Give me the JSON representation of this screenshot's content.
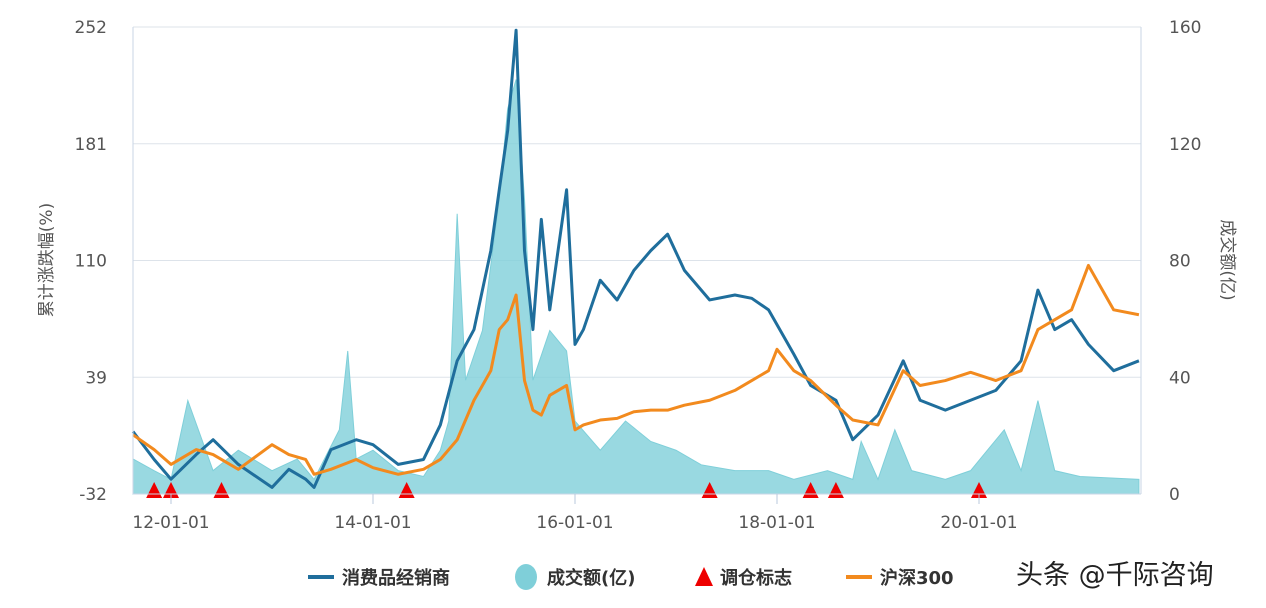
{
  "chart_data": {
    "type": "line",
    "title": "",
    "ylabel_left": "累计涨跌幅(%)",
    "ylabel_right": "成交额(亿)",
    "yticks_left": [
      "-32",
      "39",
      "110",
      "181",
      "252"
    ],
    "ylim_left": [
      -32,
      252
    ],
    "yticks_right": [
      "0",
      "40",
      "80",
      "120",
      "160"
    ],
    "ylim_right": [
      0,
      160
    ],
    "xticks": [
      {
        "date": "2012-01",
        "label": "12-01-01"
      },
      {
        "date": "2014-01",
        "label": "14-01-01"
      },
      {
        "date": "2016-01",
        "label": "16-01-01"
      },
      {
        "date": "2018-01",
        "label": "18-01-01"
      },
      {
        "date": "2020-01",
        "label": "20-01-01"
      }
    ],
    "xlim": [
      "2011-08",
      "2021-08"
    ],
    "grid": "horizontal",
    "legend_position": "bottom",
    "series": [
      {
        "name": "消费品经销商",
        "type": "line",
        "axis": "left",
        "color": "#1f6e9c",
        "points": [
          [
            "2011-08",
            6
          ],
          [
            "2011-11",
            -11
          ],
          [
            "2012-01",
            -23
          ],
          [
            "2012-04",
            -8
          ],
          [
            "2012-06",
            1
          ],
          [
            "2012-09",
            -14
          ],
          [
            "2013-01",
            -28
          ],
          [
            "2013-03",
            -17
          ],
          [
            "2013-05",
            -23
          ],
          [
            "2013-06",
            -28
          ],
          [
            "2013-08",
            -5
          ],
          [
            "2013-11",
            1
          ],
          [
            "2014-01",
            -2
          ],
          [
            "2014-04",
            -14
          ],
          [
            "2014-07",
            -11
          ],
          [
            "2014-09",
            10
          ],
          [
            "2014-11",
            49
          ],
          [
            "2015-01",
            68
          ],
          [
            "2015-03",
            116
          ],
          [
            "2015-04",
            153
          ],
          [
            "2015-05",
            189
          ],
          [
            "2015-06",
            250
          ],
          [
            "2015-07",
            116
          ],
          [
            "2015-08",
            68
          ],
          [
            "2015-09",
            135
          ],
          [
            "2015-10",
            80
          ],
          [
            "2015-12",
            153
          ],
          [
            "2016-01",
            59
          ],
          [
            "2016-02",
            68
          ],
          [
            "2016-04",
            98
          ],
          [
            "2016-06",
            86
          ],
          [
            "2016-08",
            104
          ],
          [
            "2016-10",
            116
          ],
          [
            "2016-12",
            126
          ],
          [
            "2017-02",
            104
          ],
          [
            "2017-05",
            86
          ],
          [
            "2017-08",
            89
          ],
          [
            "2017-10",
            87
          ],
          [
            "2017-12",
            80
          ],
          [
            "2018-03",
            53
          ],
          [
            "2018-05",
            34
          ],
          [
            "2018-08",
            25
          ],
          [
            "2018-10",
            1
          ],
          [
            "2019-01",
            16
          ],
          [
            "2019-04",
            49
          ],
          [
            "2019-06",
            25
          ],
          [
            "2019-09",
            19
          ],
          [
            "2019-12",
            25
          ],
          [
            "2020-03",
            31
          ],
          [
            "2020-06",
            49
          ],
          [
            "2020-08",
            92
          ],
          [
            "2020-10",
            68
          ],
          [
            "2020-12",
            74
          ],
          [
            "2021-02",
            59
          ],
          [
            "2021-05",
            43
          ],
          [
            "2021-08",
            49
          ]
        ]
      },
      {
        "name": "成交额(亿)",
        "type": "area",
        "axis": "right",
        "color": "#7fcfd9",
        "points": [
          [
            "2011-08",
            12
          ],
          [
            "2011-11",
            8
          ],
          [
            "2012-01",
            5
          ],
          [
            "2012-03",
            32
          ],
          [
            "2012-06",
            8
          ],
          [
            "2012-09",
            15
          ],
          [
            "2013-01",
            8
          ],
          [
            "2013-04",
            12
          ],
          [
            "2013-06",
            5
          ],
          [
            "2013-09",
            22
          ],
          [
            "2013-10",
            49
          ],
          [
            "2013-11",
            12
          ],
          [
            "2014-01",
            15
          ],
          [
            "2014-04",
            8
          ],
          [
            "2014-07",
            6
          ],
          [
            "2014-09",
            15
          ],
          [
            "2014-10",
            25
          ],
          [
            "2014-11",
            96
          ],
          [
            "2014-12",
            39
          ],
          [
            "2015-02",
            56
          ],
          [
            "2015-04",
            101
          ],
          [
            "2015-05",
            132
          ],
          [
            "2015-06",
            142
          ],
          [
            "2015-07",
            101
          ],
          [
            "2015-08",
            39
          ],
          [
            "2015-10",
            56
          ],
          [
            "2015-12",
            49
          ],
          [
            "2016-01",
            25
          ],
          [
            "2016-04",
            15
          ],
          [
            "2016-07",
            25
          ],
          [
            "2016-10",
            18
          ],
          [
            "2017-01",
            15
          ],
          [
            "2017-04",
            10
          ],
          [
            "2017-08",
            8
          ],
          [
            "2017-12",
            8
          ],
          [
            "2018-03",
            5
          ],
          [
            "2018-07",
            8
          ],
          [
            "2018-10",
            5
          ],
          [
            "2018-11",
            18
          ],
          [
            "2019-01",
            5
          ],
          [
            "2019-03",
            22
          ],
          [
            "2019-05",
            8
          ],
          [
            "2019-09",
            5
          ],
          [
            "2019-12",
            8
          ],
          [
            "2020-02",
            15
          ],
          [
            "2020-04",
            22
          ],
          [
            "2020-06",
            8
          ],
          [
            "2020-08",
            32
          ],
          [
            "2020-10",
            8
          ],
          [
            "2021-01",
            6
          ],
          [
            "2021-08",
            5
          ]
        ]
      },
      {
        "name": "调仓标志",
        "type": "marker",
        "marker": "triangle",
        "color": "#ee0000",
        "dates": [
          "2011-11",
          "2012-01",
          "2012-07",
          "2014-05",
          "2017-05",
          "2018-05",
          "2018-08",
          "2020-01"
        ]
      },
      {
        "name": "沪深300",
        "type": "line",
        "axis": "left",
        "color": "#f28a1e",
        "points": [
          [
            "2011-08",
            4
          ],
          [
            "2011-11",
            -5
          ],
          [
            "2012-01",
            -14
          ],
          [
            "2012-04",
            -5
          ],
          [
            "2012-06",
            -8
          ],
          [
            "2012-09",
            -17
          ],
          [
            "2013-01",
            -2
          ],
          [
            "2013-03",
            -8
          ],
          [
            "2013-05",
            -11
          ],
          [
            "2013-06",
            -20
          ],
          [
            "2013-08",
            -17
          ],
          [
            "2013-11",
            -11
          ],
          [
            "2014-01",
            -16
          ],
          [
            "2014-04",
            -20
          ],
          [
            "2014-07",
            -17
          ],
          [
            "2014-09",
            -11
          ],
          [
            "2014-11",
            1
          ],
          [
            "2015-01",
            25
          ],
          [
            "2015-03",
            43
          ],
          [
            "2015-04",
            68
          ],
          [
            "2015-05",
            74
          ],
          [
            "2015-06",
            89
          ],
          [
            "2015-07",
            37
          ],
          [
            "2015-08",
            19
          ],
          [
            "2015-09",
            16
          ],
          [
            "2015-10",
            28
          ],
          [
            "2015-12",
            34
          ],
          [
            "2016-01",
            7
          ],
          [
            "2016-02",
            10
          ],
          [
            "2016-04",
            13
          ],
          [
            "2016-06",
            14
          ],
          [
            "2016-08",
            18
          ],
          [
            "2016-10",
            19
          ],
          [
            "2016-12",
            19
          ],
          [
            "2017-02",
            22
          ],
          [
            "2017-05",
            25
          ],
          [
            "2017-08",
            31
          ],
          [
            "2017-10",
            37
          ],
          [
            "2017-12",
            43
          ],
          [
            "2018-01",
            56
          ],
          [
            "2018-03",
            43
          ],
          [
            "2018-05",
            37
          ],
          [
            "2018-08",
            22
          ],
          [
            "2018-10",
            13
          ],
          [
            "2019-01",
            10
          ],
          [
            "2019-04",
            43
          ],
          [
            "2019-06",
            34
          ],
          [
            "2019-09",
            37
          ],
          [
            "2019-12",
            42
          ],
          [
            "2020-03",
            37
          ],
          [
            "2020-06",
            43
          ],
          [
            "2020-08",
            68
          ],
          [
            "2020-10",
            74
          ],
          [
            "2020-12",
            80
          ],
          [
            "2021-02",
            107
          ],
          [
            "2021-05",
            80
          ],
          [
            "2021-08",
            77
          ]
        ]
      }
    ]
  },
  "watermark": "头条 @千际咨询"
}
